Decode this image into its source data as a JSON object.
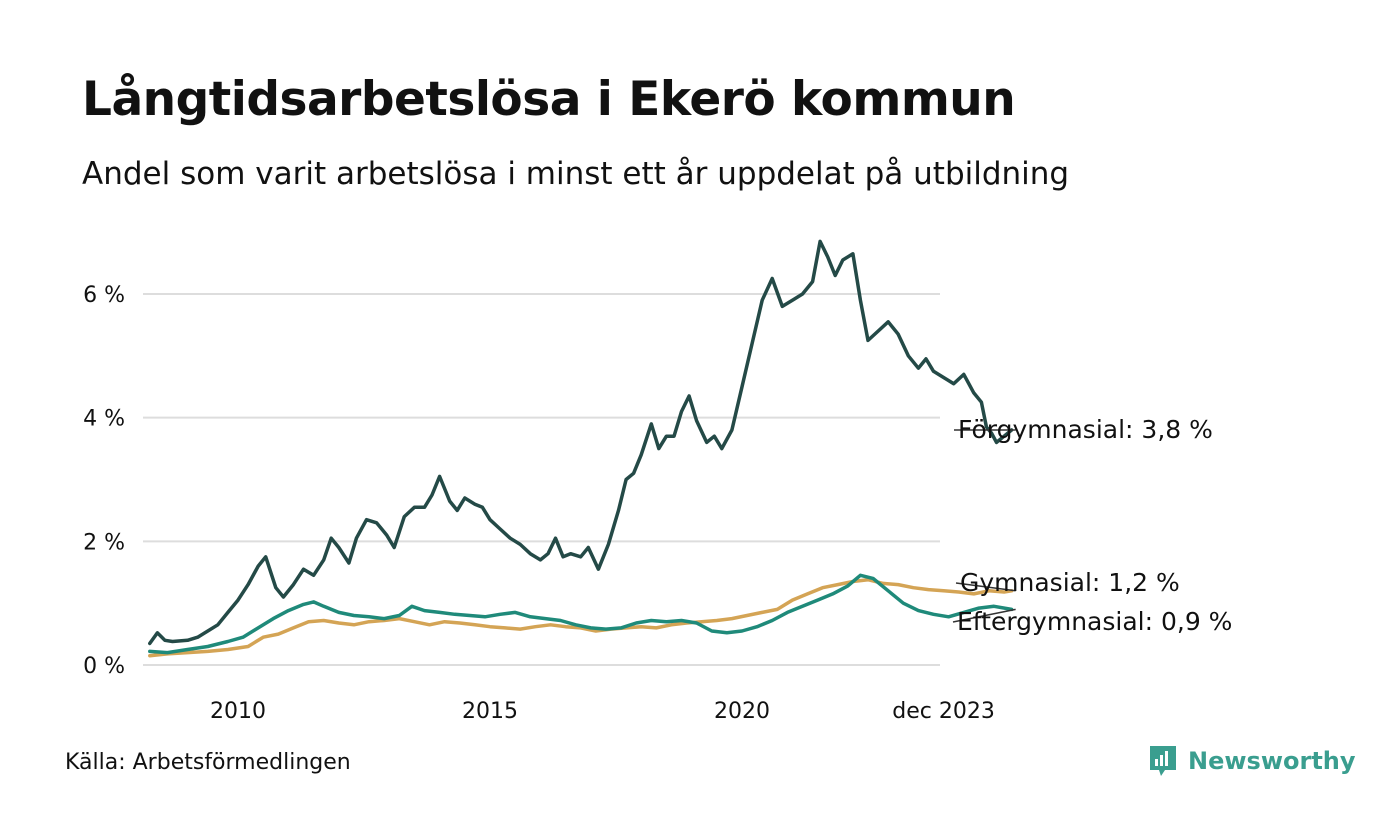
{
  "title": "Långtidsarbetslösa i Ekerö kommun",
  "subtitle": "Andel som varit arbetslösa i minst ett år uppdelat på utbildning",
  "source": "Källa: Arbetsförmedlingen",
  "brand": {
    "name": "Newsworthy",
    "icon": "newsworthy-logo-icon",
    "color": "#3a9e8f"
  },
  "chart_data": {
    "type": "line",
    "title": "Långtidsarbetslösa i Ekerö kommun",
    "xlabel": "",
    "ylabel": "",
    "x_range": [
      2008.25,
      2024.0
    ],
    "ylim": [
      0,
      7
    ],
    "y_ticks": [
      0,
      2,
      4,
      6
    ],
    "y_tick_labels": [
      "0 %",
      "2 %",
      "4 %",
      "6 %"
    ],
    "x_ticks": [
      2010,
      2015,
      2020,
      2024.0
    ],
    "x_tick_labels": [
      "2010",
      "2015",
      "2020",
      "dec 2023"
    ],
    "grid": "horizontal",
    "series": [
      {
        "name": "Förgymnasial",
        "end_label": "Förgymnasial: 3,8 %",
        "color": "#244a47",
        "points": [
          [
            2008.25,
            0.35
          ],
          [
            2008.4,
            0.52
          ],
          [
            2008.55,
            0.4
          ],
          [
            2008.7,
            0.38
          ],
          [
            2009.0,
            0.4
          ],
          [
            2009.2,
            0.45
          ],
          [
            2009.4,
            0.55
          ],
          [
            2009.6,
            0.65
          ],
          [
            2009.8,
            0.85
          ],
          [
            2010.0,
            1.05
          ],
          [
            2010.2,
            1.3
          ],
          [
            2010.4,
            1.6
          ],
          [
            2010.55,
            1.75
          ],
          [
            2010.75,
            1.25
          ],
          [
            2010.9,
            1.1
          ],
          [
            2011.1,
            1.3
          ],
          [
            2011.3,
            1.55
          ],
          [
            2011.5,
            1.45
          ],
          [
            2011.7,
            1.7
          ],
          [
            2011.85,
            2.05
          ],
          [
            2012.0,
            1.9
          ],
          [
            2012.2,
            1.65
          ],
          [
            2012.35,
            2.05
          ],
          [
            2012.55,
            2.35
          ],
          [
            2012.75,
            2.3
          ],
          [
            2012.95,
            2.1
          ],
          [
            2013.1,
            1.9
          ],
          [
            2013.3,
            2.4
          ],
          [
            2013.5,
            2.55
          ],
          [
            2013.7,
            2.55
          ],
          [
            2013.85,
            2.75
          ],
          [
            2014.0,
            3.05
          ],
          [
            2014.2,
            2.65
          ],
          [
            2014.35,
            2.5
          ],
          [
            2014.5,
            2.7
          ],
          [
            2014.7,
            2.6
          ],
          [
            2014.85,
            2.55
          ],
          [
            2015.0,
            2.35
          ],
          [
            2015.2,
            2.2
          ],
          [
            2015.4,
            2.05
          ],
          [
            2015.6,
            1.95
          ],
          [
            2015.8,
            1.8
          ],
          [
            2016.0,
            1.7
          ],
          [
            2016.15,
            1.8
          ],
          [
            2016.3,
            2.05
          ],
          [
            2016.45,
            1.75
          ],
          [
            2016.6,
            1.8
          ],
          [
            2016.8,
            1.75
          ],
          [
            2016.95,
            1.9
          ],
          [
            2017.15,
            1.55
          ],
          [
            2017.35,
            1.95
          ],
          [
            2017.55,
            2.5
          ],
          [
            2017.7,
            3.0
          ],
          [
            2017.85,
            3.1
          ],
          [
            2018.0,
            3.4
          ],
          [
            2018.2,
            3.9
          ],
          [
            2018.35,
            3.5
          ],
          [
            2018.5,
            3.7
          ],
          [
            2018.65,
            3.7
          ],
          [
            2018.8,
            4.1
          ],
          [
            2018.95,
            4.35
          ],
          [
            2019.1,
            3.95
          ],
          [
            2019.3,
            3.6
          ],
          [
            2019.45,
            3.7
          ],
          [
            2019.6,
            3.5
          ],
          [
            2019.8,
            3.8
          ],
          [
            2020.0,
            4.5
          ],
          [
            2020.2,
            5.2
          ],
          [
            2020.4,
            5.9
          ],
          [
            2020.6,
            6.25
          ],
          [
            2020.8,
            5.8
          ],
          [
            2021.0,
            5.9
          ],
          [
            2021.2,
            6.0
          ],
          [
            2021.4,
            6.2
          ],
          [
            2021.55,
            6.85
          ],
          [
            2021.7,
            6.6
          ],
          [
            2021.85,
            6.3
          ],
          [
            2022.0,
            6.55
          ],
          [
            2022.2,
            6.65
          ],
          [
            2022.35,
            5.9
          ],
          [
            2022.5,
            5.25
          ],
          [
            2022.7,
            5.4
          ],
          [
            2022.9,
            5.55
          ],
          [
            2023.1,
            5.35
          ],
          [
            2023.3,
            5.0
          ],
          [
            2023.5,
            4.8
          ],
          [
            2023.65,
            4.95
          ],
          [
            2023.8,
            4.75
          ],
          [
            2024.0,
            4.65
          ],
          [
            2024.2,
            4.55
          ],
          [
            2024.4,
            4.7
          ],
          [
            2024.6,
            4.4
          ],
          [
            2024.75,
            4.25
          ],
          [
            2024.85,
            3.85
          ],
          [
            2024.95,
            3.75
          ],
          [
            2025.05,
            3.6
          ],
          [
            2025.2,
            3.7
          ],
          [
            2025.35,
            3.8
          ]
        ]
      },
      {
        "name": "Gymnasial",
        "end_label": "Gymnasial: 1,2 %",
        "color": "#d4a455",
        "points": [
          [
            2008.25,
            0.15
          ],
          [
            2008.6,
            0.18
          ],
          [
            2009.0,
            0.2
          ],
          [
            2009.4,
            0.22
          ],
          [
            2009.8,
            0.25
          ],
          [
            2010.2,
            0.3
          ],
          [
            2010.5,
            0.45
          ],
          [
            2010.8,
            0.5
          ],
          [
            2011.1,
            0.6
          ],
          [
            2011.4,
            0.7
          ],
          [
            2011.7,
            0.72
          ],
          [
            2012.0,
            0.68
          ],
          [
            2012.3,
            0.65
          ],
          [
            2012.6,
            0.7
          ],
          [
            2012.9,
            0.72
          ],
          [
            2013.2,
            0.75
          ],
          [
            2013.5,
            0.7
          ],
          [
            2013.8,
            0.65
          ],
          [
            2014.1,
            0.7
          ],
          [
            2014.4,
            0.68
          ],
          [
            2014.7,
            0.65
          ],
          [
            2015.0,
            0.62
          ],
          [
            2015.3,
            0.6
          ],
          [
            2015.6,
            0.58
          ],
          [
            2015.9,
            0.62
          ],
          [
            2016.2,
            0.65
          ],
          [
            2016.5,
            0.62
          ],
          [
            2016.8,
            0.6
          ],
          [
            2017.1,
            0.55
          ],
          [
            2017.4,
            0.58
          ],
          [
            2017.7,
            0.6
          ],
          [
            2018.0,
            0.62
          ],
          [
            2018.3,
            0.6
          ],
          [
            2018.6,
            0.65
          ],
          [
            2018.9,
            0.68
          ],
          [
            2019.2,
            0.7
          ],
          [
            2019.5,
            0.72
          ],
          [
            2019.8,
            0.75
          ],
          [
            2020.1,
            0.8
          ],
          [
            2020.4,
            0.85
          ],
          [
            2020.7,
            0.9
          ],
          [
            2021.0,
            1.05
          ],
          [
            2021.3,
            1.15
          ],
          [
            2021.6,
            1.25
          ],
          [
            2021.9,
            1.3
          ],
          [
            2022.2,
            1.35
          ],
          [
            2022.5,
            1.38
          ],
          [
            2022.8,
            1.32
          ],
          [
            2023.1,
            1.3
          ],
          [
            2023.4,
            1.25
          ],
          [
            2023.7,
            1.22
          ],
          [
            2024.0,
            1.2
          ],
          [
            2024.3,
            1.18
          ],
          [
            2024.6,
            1.15
          ],
          [
            2024.9,
            1.2
          ],
          [
            2025.2,
            1.18
          ],
          [
            2025.35,
            1.2
          ]
        ]
      },
      {
        "name": "Eftergymnasial",
        "end_label": "Eftergymnasial: 0,9 %",
        "color": "#1f8a7a",
        "points": [
          [
            2008.25,
            0.22
          ],
          [
            2008.6,
            0.2
          ],
          [
            2009.0,
            0.25
          ],
          [
            2009.4,
            0.3
          ],
          [
            2009.8,
            0.38
          ],
          [
            2010.1,
            0.45
          ],
          [
            2010.4,
            0.6
          ],
          [
            2010.7,
            0.75
          ],
          [
            2011.0,
            0.88
          ],
          [
            2011.3,
            0.98
          ],
          [
            2011.5,
            1.02
          ],
          [
            2011.7,
            0.95
          ],
          [
            2012.0,
            0.85
          ],
          [
            2012.3,
            0.8
          ],
          [
            2012.6,
            0.78
          ],
          [
            2012.9,
            0.75
          ],
          [
            2013.2,
            0.8
          ],
          [
            2013.45,
            0.95
          ],
          [
            2013.7,
            0.88
          ],
          [
            2014.0,
            0.85
          ],
          [
            2014.3,
            0.82
          ],
          [
            2014.6,
            0.8
          ],
          [
            2014.9,
            0.78
          ],
          [
            2015.2,
            0.82
          ],
          [
            2015.5,
            0.85
          ],
          [
            2015.8,
            0.78
          ],
          [
            2016.1,
            0.75
          ],
          [
            2016.4,
            0.72
          ],
          [
            2016.7,
            0.65
          ],
          [
            2017.0,
            0.6
          ],
          [
            2017.3,
            0.58
          ],
          [
            2017.6,
            0.6
          ],
          [
            2017.9,
            0.68
          ],
          [
            2018.2,
            0.72
          ],
          [
            2018.5,
            0.7
          ],
          [
            2018.8,
            0.72
          ],
          [
            2019.1,
            0.68
          ],
          [
            2019.4,
            0.55
          ],
          [
            2019.7,
            0.52
          ],
          [
            2020.0,
            0.55
          ],
          [
            2020.3,
            0.62
          ],
          [
            2020.6,
            0.72
          ],
          [
            2020.9,
            0.85
          ],
          [
            2021.2,
            0.95
          ],
          [
            2021.5,
            1.05
          ],
          [
            2021.8,
            1.15
          ],
          [
            2022.1,
            1.28
          ],
          [
            2022.35,
            1.45
          ],
          [
            2022.6,
            1.4
          ],
          [
            2022.9,
            1.2
          ],
          [
            2023.2,
            1.0
          ],
          [
            2023.5,
            0.88
          ],
          [
            2023.8,
            0.82
          ],
          [
            2024.1,
            0.78
          ],
          [
            2024.4,
            0.85
          ],
          [
            2024.7,
            0.92
          ],
          [
            2025.0,
            0.95
          ],
          [
            2025.35,
            0.9
          ]
        ]
      }
    ]
  }
}
